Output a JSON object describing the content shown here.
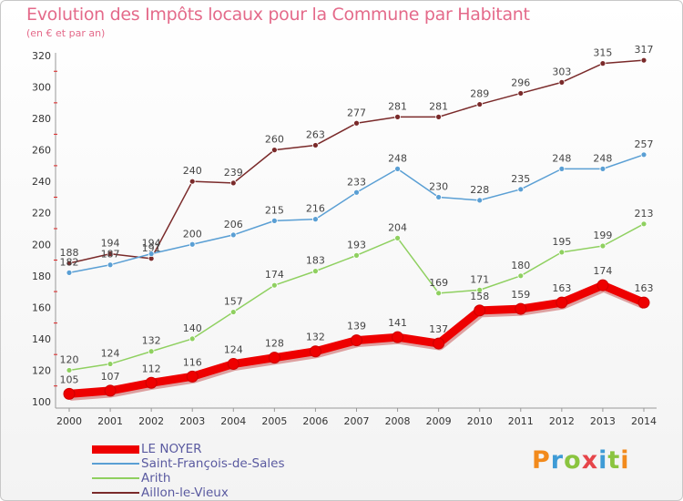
{
  "title": "Evolution des Impôts locaux pour la Commune par Habitant",
  "subtitle": "(en € et par an)",
  "logo_text": "Proxiti",
  "chart_data": {
    "type": "line",
    "x": [
      "2000",
      "2001",
      "2002",
      "2003",
      "2004",
      "2005",
      "2006",
      "2007",
      "2008",
      "2009",
      "2010",
      "2011",
      "2012",
      "2013",
      "2014"
    ],
    "ylim": [
      100,
      320
    ],
    "yticks": [
      100,
      120,
      140,
      160,
      180,
      200,
      220,
      240,
      260,
      280,
      300,
      320
    ],
    "grid": false,
    "legend_position": "bottom-left",
    "series": [
      {
        "name": "Aillon-le-Vieux",
        "color": "#7a2a2a",
        "values": [
          188,
          194,
          191,
          240,
          239,
          260,
          263,
          277,
          281,
          281,
          289,
          296,
          303,
          315,
          317
        ]
      },
      {
        "name": "Saint-François-de-Sales",
        "color": "#5a9fd4",
        "values": [
          182,
          187,
          194,
          200,
          206,
          215,
          216,
          233,
          248,
          230,
          228,
          235,
          248,
          248,
          257
        ]
      },
      {
        "name": "Arith",
        "color": "#8fd060",
        "values": [
          120,
          124,
          132,
          140,
          157,
          174,
          183,
          193,
          204,
          169,
          171,
          180,
          195,
          199,
          213
        ]
      },
      {
        "name": "LE NOYER",
        "color": "#ee0000",
        "values": [
          105,
          107,
          112,
          116,
          124,
          128,
          132,
          139,
          141,
          137,
          158,
          159,
          163,
          174,
          163
        ]
      }
    ],
    "legend_order": [
      "LE NOYER",
      "Saint-François-de-Sales",
      "Arith",
      "Aillon-le-Vieux"
    ]
  }
}
